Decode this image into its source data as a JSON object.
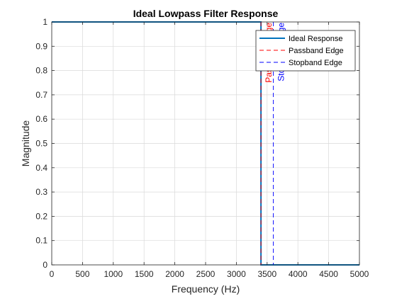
{
  "chart_data": {
    "type": "line",
    "title": "Ideal Lowpass Filter Response",
    "xlabel": "Frequency (Hz)",
    "ylabel": "Magnitude",
    "xlim": [
      0,
      5000
    ],
    "ylim": [
      0,
      1
    ],
    "xticks": [
      0,
      500,
      1000,
      1500,
      2000,
      2500,
      3000,
      3500,
      4000,
      4500,
      5000
    ],
    "yticks": [
      0,
      0.1,
      0.2,
      0.3,
      0.4,
      0.5,
      0.6,
      0.7,
      0.8,
      0.9,
      1
    ],
    "grid": true,
    "legend_location": "top-right",
    "series": [
      {
        "name": "Ideal Response",
        "color": "#0072bd",
        "style": "solid",
        "x": [
          0,
          3400,
          3400,
          5000
        ],
        "y": [
          1,
          1,
          0,
          0
        ]
      }
    ],
    "vlines": [
      {
        "name": "Passband Edge",
        "x": 3400,
        "color": "#ff0000",
        "style": "dashed",
        "label": "Passband Edge"
      },
      {
        "name": "Stopband Edge",
        "x": 3600,
        "color": "#0000ff",
        "style": "dashed",
        "label": "Stopband Edge"
      }
    ]
  }
}
